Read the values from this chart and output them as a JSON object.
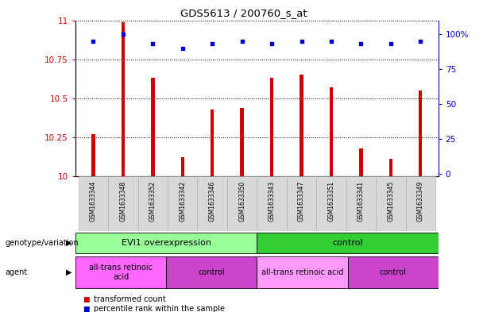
{
  "title": "GDS5613 / 200760_s_at",
  "samples": [
    "GSM1633344",
    "GSM1633348",
    "GSM1633352",
    "GSM1633342",
    "GSM1633346",
    "GSM1633350",
    "GSM1633343",
    "GSM1633347",
    "GSM1633351",
    "GSM1633341",
    "GSM1633345",
    "GSM1633349"
  ],
  "bar_values": [
    10.27,
    10.99,
    10.63,
    10.12,
    10.43,
    10.44,
    10.63,
    10.65,
    10.57,
    10.18,
    10.11,
    10.55
  ],
  "dot_values": [
    95,
    100,
    93,
    90,
    93,
    95,
    93,
    95,
    95,
    93,
    93,
    95
  ],
  "ylim": [
    10,
    11
  ],
  "yticks": [
    10,
    10.25,
    10.5,
    10.75,
    11
  ],
  "ytick_labels": [
    "10",
    "10.25",
    "10.5",
    "10.75",
    "11"
  ],
  "right_yticks": [
    0,
    25,
    50,
    75,
    100
  ],
  "right_ytick_labels": [
    "0",
    "25",
    "50",
    "75",
    "100%"
  ],
  "bar_color": "#cc0000",
  "dot_color": "#0000cc",
  "bar_bottom": 10,
  "genotype_groups": [
    {
      "label": "EVI1 overexpression",
      "start": 0,
      "end": 6,
      "color": "#99ff99"
    },
    {
      "label": "control",
      "start": 6,
      "end": 12,
      "color": "#33cc33"
    }
  ],
  "agent_groups": [
    {
      "label": "all-trans retinoic\nacid",
      "start": 0,
      "end": 3,
      "color": "#ff66ff"
    },
    {
      "label": "control",
      "start": 3,
      "end": 6,
      "color": "#cc44cc"
    },
    {
      "label": "all-trans retinoic acid",
      "start": 6,
      "end": 9,
      "color": "#ff99ff"
    },
    {
      "label": "control",
      "start": 9,
      "end": 12,
      "color": "#cc44cc"
    }
  ],
  "legend_items": [
    {
      "label": "transformed count",
      "color": "#cc0000"
    },
    {
      "label": "percentile rank within the sample",
      "color": "#0000cc"
    }
  ],
  "left_label": "genotype/variation",
  "agent_label": "agent",
  "bg_color": "#ffffff",
  "plot_bg_color": "#ffffff",
  "tick_color_left": "#cc0000",
  "tick_color_right": "#0000cc"
}
